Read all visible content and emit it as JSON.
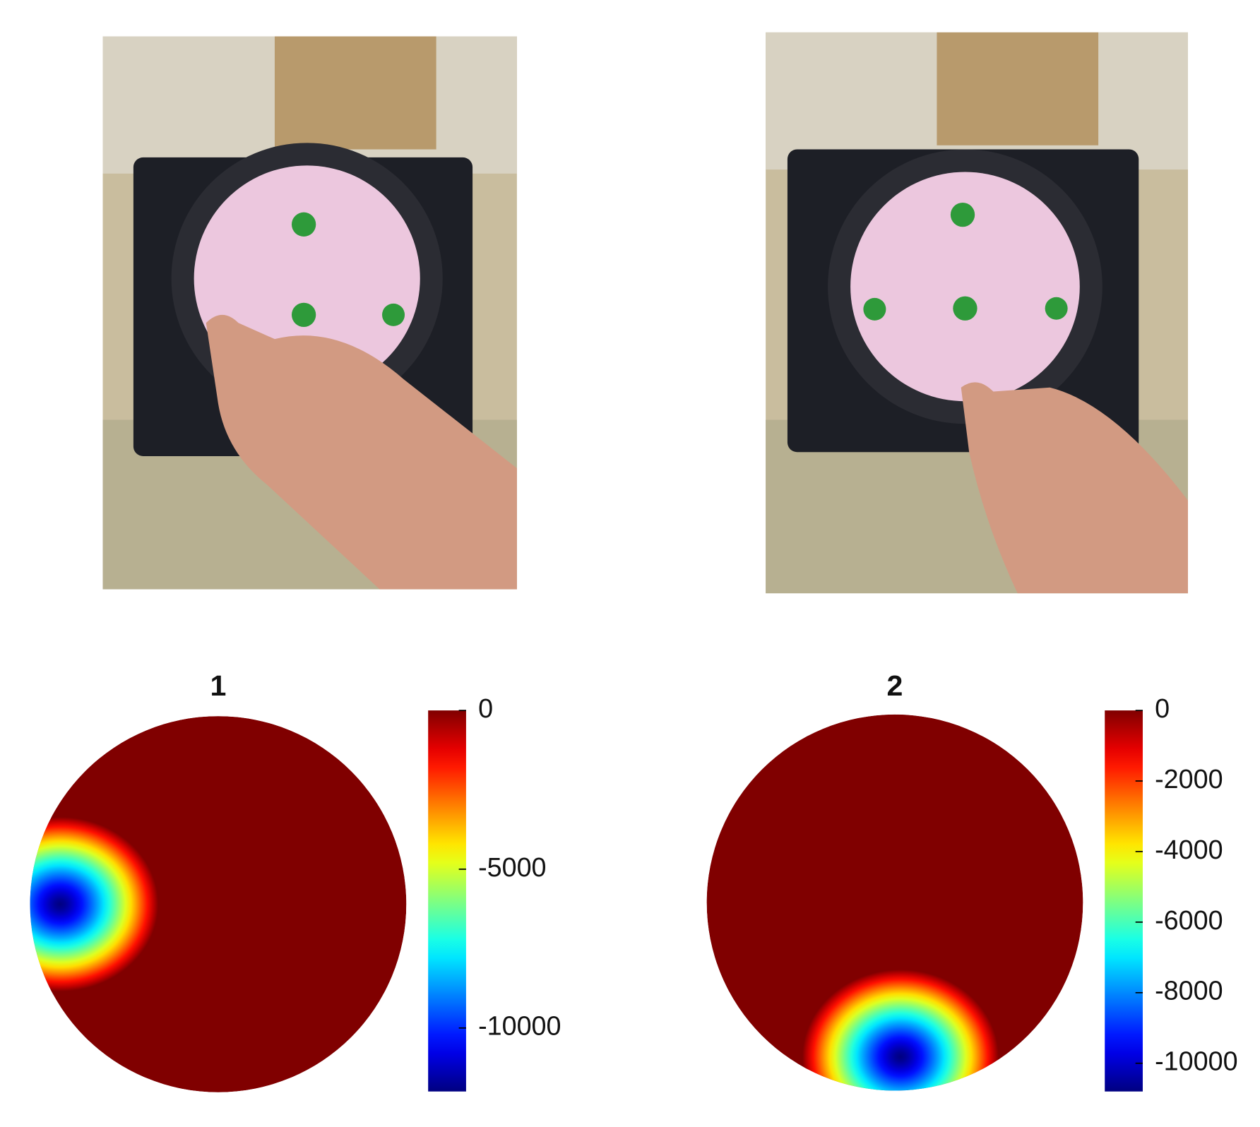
{
  "chart_data": [
    {
      "type": "heatmap",
      "title": "1",
      "colormap": "jet",
      "clim": [
        -12000,
        0
      ],
      "yticks": [
        0,
        -5000,
        -10000
      ],
      "min": -12000,
      "hotspot": [
        -0.84,
        0.0
      ]
    },
    {
      "type": "heatmap",
      "title": "2",
      "colormap": "jet",
      "clim": [
        -10800,
        0
      ],
      "yticks": [
        0,
        -2000,
        -4000,
        -6000,
        -8000,
        -10000
      ],
      "min": -10800,
      "hotspot": [
        0.03,
        -0.82
      ]
    }
  ]
}
